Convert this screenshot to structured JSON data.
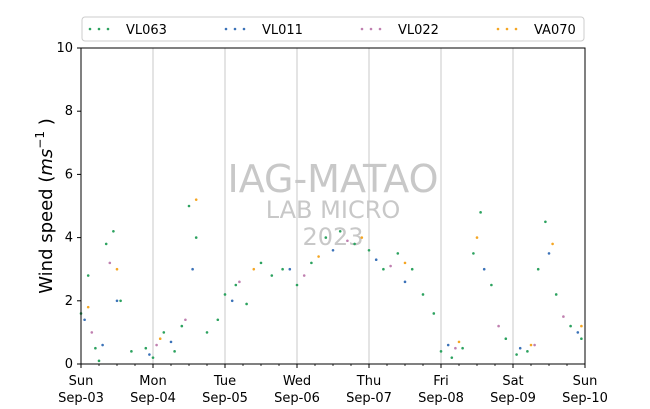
{
  "chart_data": {
    "type": "scatter",
    "ylabel_main": "Wind speed (",
    "ylabel_unit": "ms",
    "ylabel_exp": "−1",
    "ylabel_close": " )",
    "ylim": [
      0,
      10
    ],
    "yticks": [
      "0",
      "2",
      "4",
      "6",
      "8",
      "10"
    ],
    "xlim_days": [
      0,
      7
    ],
    "xticks": [
      {
        "day": 0,
        "weekday": "Sun",
        "date": "Sep-03"
      },
      {
        "day": 1,
        "weekday": "Mon",
        "date": "Sep-04"
      },
      {
        "day": 2,
        "weekday": "Tue",
        "date": "Sep-05"
      },
      {
        "day": 3,
        "weekday": "Wed",
        "date": "Sep-06"
      },
      {
        "day": 4,
        "weekday": "Thu",
        "date": "Sep-07"
      },
      {
        "day": 5,
        "weekday": "Fri",
        "date": "Sep-08"
      },
      {
        "day": 6,
        "weekday": "Sat",
        "date": "Sep-09"
      },
      {
        "day": 7,
        "weekday": "Sun",
        "date": "Sep-10"
      }
    ],
    "grid": "vertical",
    "legend_placement": "top",
    "watermark": [
      "IAG-MATAO",
      "LAB MICRO",
      "2023"
    ],
    "series": [
      {
        "name": "VL063",
        "color": "#2ca25f",
        "values": [
          [
            0.0,
            1.6
          ],
          [
            0.1,
            2.8
          ],
          [
            0.2,
            0.5
          ],
          [
            0.25,
            0.1
          ],
          [
            0.35,
            3.8
          ],
          [
            0.45,
            4.2
          ],
          [
            0.55,
            2.0
          ],
          [
            0.7,
            0.4
          ],
          [
            0.9,
            0.5
          ],
          [
            1.0,
            0.2
          ],
          [
            1.15,
            1.0
          ],
          [
            1.3,
            0.4
          ],
          [
            1.4,
            1.2
          ],
          [
            1.5,
            5.0
          ],
          [
            1.6,
            4.0
          ],
          [
            1.75,
            1.0
          ],
          [
            1.9,
            1.4
          ],
          [
            2.0,
            2.2
          ],
          [
            2.15,
            2.5
          ],
          [
            2.3,
            1.9
          ],
          [
            2.5,
            3.2
          ],
          [
            2.65,
            2.8
          ],
          [
            2.8,
            3.0
          ],
          [
            3.0,
            2.5
          ],
          [
            3.2,
            3.2
          ],
          [
            3.4,
            4.0
          ],
          [
            3.6,
            4.2
          ],
          [
            3.8,
            3.8
          ],
          [
            4.0,
            3.6
          ],
          [
            4.2,
            3.0
          ],
          [
            4.4,
            3.5
          ],
          [
            4.6,
            3.0
          ],
          [
            4.75,
            2.2
          ],
          [
            4.9,
            1.6
          ],
          [
            5.0,
            0.4
          ],
          [
            5.15,
            0.2
          ],
          [
            5.3,
            0.5
          ],
          [
            5.45,
            3.5
          ],
          [
            5.55,
            4.8
          ],
          [
            5.7,
            2.5
          ],
          [
            5.9,
            0.8
          ],
          [
            6.05,
            0.3
          ],
          [
            6.2,
            0.4
          ],
          [
            6.35,
            3.0
          ],
          [
            6.45,
            4.5
          ],
          [
            6.6,
            2.2
          ],
          [
            6.8,
            1.2
          ],
          [
            6.95,
            0.8
          ]
        ]
      },
      {
        "name": "VL011",
        "color": "#3b72b8",
        "values": [
          [
            0.05,
            1.4
          ],
          [
            0.3,
            0.6
          ],
          [
            0.5,
            2.0
          ],
          [
            0.95,
            0.3
          ],
          [
            1.25,
            0.7
          ],
          [
            1.55,
            3.0
          ],
          [
            2.1,
            2.0
          ],
          [
            2.9,
            3.0
          ],
          [
            3.5,
            3.6
          ],
          [
            4.1,
            3.3
          ],
          [
            4.5,
            2.6
          ],
          [
            5.1,
            0.6
          ],
          [
            5.6,
            3.0
          ],
          [
            6.1,
            0.5
          ],
          [
            6.5,
            3.5
          ],
          [
            6.9,
            1.0
          ]
        ]
      },
      {
        "name": "VL022",
        "color": "#c080b0",
        "values": [
          [
            0.15,
            1.0
          ],
          [
            0.4,
            3.2
          ],
          [
            1.05,
            0.6
          ],
          [
            1.45,
            1.4
          ],
          [
            2.2,
            2.6
          ],
          [
            3.1,
            2.8
          ],
          [
            3.7,
            3.9
          ],
          [
            4.3,
            3.1
          ],
          [
            5.2,
            0.5
          ],
          [
            5.8,
            1.2
          ],
          [
            6.3,
            0.6
          ],
          [
            6.7,
            1.5
          ]
        ]
      },
      {
        "name": "VA070",
        "color": "#f5a623",
        "values": [
          [
            0.1,
            1.8
          ],
          [
            0.5,
            3.0
          ],
          [
            1.1,
            0.8
          ],
          [
            1.6,
            5.2
          ],
          [
            2.4,
            3.0
          ],
          [
            3.3,
            3.4
          ],
          [
            3.9,
            4.0
          ],
          [
            4.5,
            3.2
          ],
          [
            5.25,
            0.7
          ],
          [
            5.5,
            4.0
          ],
          [
            6.25,
            0.6
          ],
          [
            6.55,
            3.8
          ],
          [
            6.95,
            1.2
          ]
        ]
      }
    ]
  }
}
